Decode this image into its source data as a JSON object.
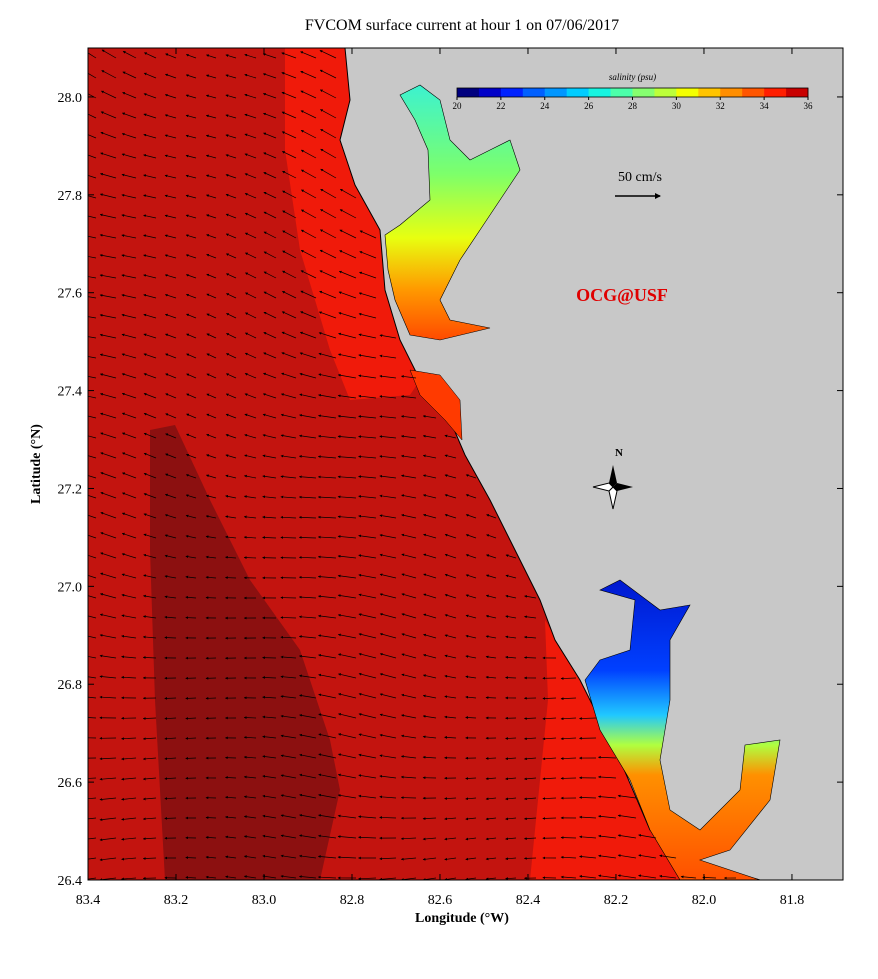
{
  "title": "FVCOM surface current at hour 1 on 07/06/2017",
  "x_axis": {
    "label": "Longitude (°W)",
    "lim": [
      83.4,
      81.684
    ],
    "ticks": [
      83.4,
      83.2,
      {
        "value": 83,
        "label": "83.0"
      },
      82.8,
      82.6,
      82.4,
      82.2,
      {
        "value": 82,
        "label": "82.0"
      },
      81.8
    ]
  },
  "y_axis": {
    "label": "Latitude (°N)",
    "lim": [
      26.4,
      28.1
    ],
    "ticks": [
      26.4,
      26.6,
      26.8,
      {
        "value": 27,
        "label": "27.0"
      },
      27.2,
      27.4,
      27.6,
      27.8,
      {
        "value": 28,
        "label": "28.0"
      }
    ]
  },
  "colorbar": {
    "title": "salinity (psu)",
    "lim": [
      20,
      36
    ],
    "ticks": [
      20,
      22,
      24,
      26,
      28,
      30,
      32,
      34,
      36
    ],
    "colors": [
      "#00007f",
      "#0000c8",
      "#0022ff",
      "#0060ff",
      "#0096ff",
      "#00ccff",
      "#16f4e0",
      "#4cffaa",
      "#86ff70",
      "#bcff3a",
      "#f4ff00",
      "#ffc400",
      "#ff8e00",
      "#ff5600",
      "#ff1e00",
      "#c80000"
    ]
  },
  "scale_label": "50 cm/s",
  "compass_label": "N",
  "watermark": "OCG@USF"
}
